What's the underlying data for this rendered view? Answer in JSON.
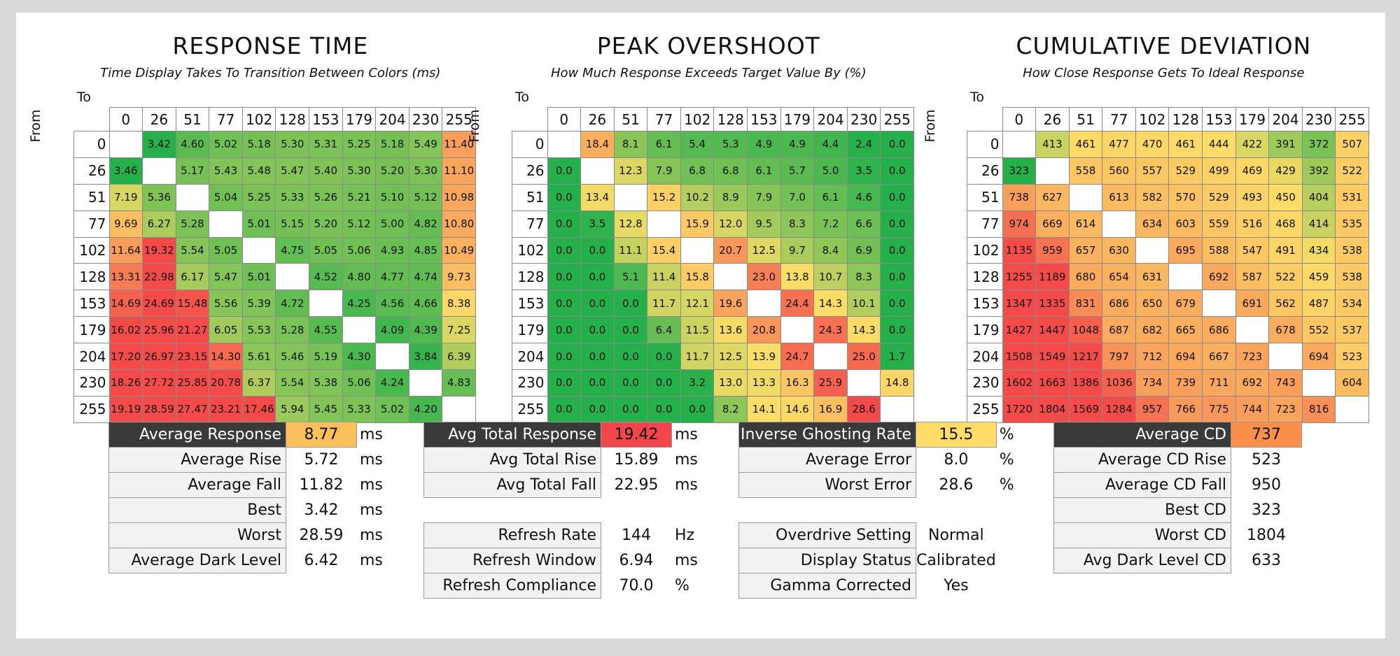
{
  "levels": [
    "0",
    "26",
    "51",
    "77",
    "102",
    "128",
    "153",
    "179",
    "204",
    "230",
    "255"
  ],
  "to_label": "To",
  "from_label": "From",
  "chart_data": [
    {
      "type": "heatmap",
      "title": "RESPONSE TIME",
      "subtitle": "Time Display Takes To Transition Between Colors (ms)",
      "decimals": 2,
      "scale": {
        "kind": "fixed",
        "green": 3.5,
        "yellow": 8,
        "red": 16
      },
      "rows": [
        [
          null,
          3.42,
          4.6,
          5.02,
          5.18,
          5.3,
          5.31,
          5.25,
          5.18,
          5.49,
          11.4
        ],
        [
          3.46,
          null,
          5.17,
          5.43,
          5.48,
          5.47,
          5.4,
          5.3,
          5.2,
          5.3,
          11.1
        ],
        [
          7.19,
          5.36,
          null,
          5.04,
          5.25,
          5.33,
          5.26,
          5.21,
          5.1,
          5.12,
          10.98
        ],
        [
          9.69,
          6.27,
          5.28,
          null,
          5.01,
          5.15,
          5.2,
          5.12,
          5.0,
          4.82,
          10.8
        ],
        [
          11.64,
          19.32,
          5.54,
          5.05,
          null,
          4.75,
          5.05,
          5.06,
          4.93,
          4.85,
          10.49
        ],
        [
          13.31,
          22.98,
          6.17,
          5.47,
          5.01,
          null,
          4.52,
          4.8,
          4.77,
          4.74,
          9.73
        ],
        [
          14.69,
          24.69,
          15.48,
          5.56,
          5.39,
          4.72,
          null,
          4.25,
          4.56,
          4.66,
          8.38
        ],
        [
          16.02,
          25.96,
          21.27,
          6.05,
          5.53,
          5.28,
          4.55,
          null,
          4.09,
          4.39,
          7.25
        ],
        [
          17.2,
          26.97,
          23.15,
          14.3,
          5.61,
          5.46,
          5.19,
          4.3,
          null,
          3.84,
          6.39
        ],
        [
          18.26,
          27.72,
          25.85,
          20.78,
          6.37,
          5.54,
          5.38,
          5.06,
          4.24,
          null,
          4.83
        ],
        [
          19.19,
          28.59,
          27.47,
          23.21,
          17.46,
          5.94,
          5.45,
          5.33,
          5.02,
          4.2,
          null
        ]
      ]
    },
    {
      "type": "heatmap",
      "title": "PEAK OVERSHOOT",
      "subtitle": "How Much Response Exceeds Target Value By (%)",
      "decimals": 1,
      "scale": {
        "kind": "fixed",
        "green": 3,
        "yellow": 14,
        "red": 28
      },
      "rows": [
        [
          null,
          18.4,
          8.1,
          6.1,
          5.4,
          5.3,
          4.9,
          4.9,
          4.4,
          2.4,
          0.0
        ],
        [
          0.0,
          null,
          12.3,
          7.9,
          6.8,
          6.8,
          6.1,
          5.7,
          5.0,
          3.5,
          0.0
        ],
        [
          0.0,
          13.4,
          null,
          15.2,
          10.2,
          8.9,
          7.9,
          7.0,
          6.1,
          4.6,
          0.0
        ],
        [
          0.0,
          3.5,
          12.8,
          null,
          15.9,
          12.0,
          9.5,
          8.3,
          7.2,
          6.6,
          0.0
        ],
        [
          0.0,
          0.0,
          11.1,
          15.4,
          null,
          20.7,
          12.5,
          9.7,
          8.4,
          6.9,
          0.0
        ],
        [
          0.0,
          0.0,
          5.1,
          11.4,
          15.8,
          null,
          23.0,
          13.8,
          10.7,
          8.3,
          0.0
        ],
        [
          0.0,
          0.0,
          0.0,
          11.7,
          12.1,
          19.6,
          null,
          24.4,
          14.3,
          10.1,
          0.0
        ],
        [
          0.0,
          0.0,
          0.0,
          6.4,
          11.5,
          13.6,
          20.8,
          null,
          24.3,
          14.3,
          0.0
        ],
        [
          0.0,
          0.0,
          0.0,
          0.0,
          11.7,
          12.5,
          13.9,
          24.7,
          null,
          25.0,
          1.7
        ],
        [
          0.0,
          0.0,
          0.0,
          0.0,
          3.2,
          13.0,
          13.3,
          16.3,
          25.9,
          null,
          14.8
        ],
        [
          0.0,
          0.0,
          0.0,
          0.0,
          0.0,
          8.2,
          14.1,
          14.6,
          16.9,
          28.6,
          null
        ]
      ]
    },
    {
      "type": "heatmap",
      "title": "CUMULATIVE DEVIATION",
      "subtitle": "How Close Response Gets To Ideal Response",
      "decimals": 0,
      "scale": {
        "kind": "fixed",
        "green": 330,
        "yellow": 440,
        "red": 1150
      },
      "rows": [
        [
          null,
          413,
          461,
          477,
          470,
          461,
          444,
          422,
          391,
          372,
          507
        ],
        [
          323,
          null,
          558,
          560,
          557,
          529,
          499,
          469,
          429,
          392,
          522
        ],
        [
          738,
          627,
          null,
          613,
          582,
          570,
          529,
          493,
          450,
          404,
          531
        ],
        [
          974,
          669,
          614,
          null,
          634,
          603,
          559,
          516,
          468,
          414,
          535
        ],
        [
          1135,
          959,
          657,
          630,
          null,
          695,
          588,
          547,
          491,
          434,
          538
        ],
        [
          1255,
          1189,
          680,
          654,
          631,
          null,
          692,
          587,
          522,
          459,
          538
        ],
        [
          1347,
          1335,
          831,
          686,
          650,
          679,
          null,
          691,
          562,
          487,
          534
        ],
        [
          1427,
          1447,
          1048,
          687,
          682,
          665,
          686,
          null,
          678,
          552,
          537
        ],
        [
          1508,
          1549,
          1217,
          797,
          712,
          694,
          667,
          723,
          null,
          694,
          523
        ],
        [
          1602,
          1663,
          1386,
          1036,
          734,
          739,
          711,
          692,
          743,
          null,
          604
        ],
        [
          1720,
          1804,
          1569,
          1284,
          957,
          766,
          775,
          744,
          723,
          816,
          null
        ]
      ]
    }
  ],
  "stats": [
    {
      "rows": [
        {
          "label": "Average Response",
          "value": "8.77",
          "unit": "ms",
          "dark": true,
          "color": "#fbbf5c"
        },
        {
          "label": "Average Rise",
          "value": "5.72",
          "unit": "ms"
        },
        {
          "label": "Average Fall",
          "value": "11.82",
          "unit": "ms"
        },
        {
          "label": "Best",
          "value": "3.42",
          "unit": "ms"
        },
        {
          "label": "Worst",
          "value": "28.59",
          "unit": "ms"
        },
        {
          "label": "Average Dark Level",
          "value": "6.42",
          "unit": "ms"
        }
      ]
    },
    {
      "rows": [
        {
          "label": "Avg Total Response",
          "value": "19.42",
          "unit": "ms",
          "dark": true,
          "color": "#f2474a"
        },
        {
          "label": "Avg Total Rise",
          "value": "15.89",
          "unit": "ms"
        },
        {
          "label": "Avg Total Fall",
          "value": "22.95",
          "unit": "ms"
        },
        {
          "gap": true
        },
        {
          "label": "Refresh Rate",
          "value": "144",
          "unit": "Hz"
        },
        {
          "label": "Refresh Window",
          "value": "6.94",
          "unit": "ms"
        },
        {
          "label": "Refresh Compliance",
          "value": "70.0",
          "unit": "%"
        }
      ]
    },
    {
      "rows": [
        {
          "label": "Inverse Ghosting Rate",
          "value": "15.5",
          "unit": "%",
          "dark": true,
          "color": "#fddc68"
        },
        {
          "label": "Average Error",
          "value": "8.0",
          "unit": "%"
        },
        {
          "label": "Worst Error",
          "value": "28.6",
          "unit": "%"
        },
        {
          "gap": true
        },
        {
          "label": "Overdrive Setting",
          "value": "Normal",
          "unit": ""
        },
        {
          "label": "Display Status",
          "value": "Calibrated",
          "unit": ""
        },
        {
          "label": "Gamma Corrected",
          "value": "Yes",
          "unit": ""
        }
      ]
    },
    {
      "rows": [
        {
          "label": "Average CD",
          "value": "737",
          "unit": "",
          "dark": true,
          "color": "#f98f48"
        },
        {
          "label": "Average CD Rise",
          "value": "523",
          "unit": ""
        },
        {
          "label": "Average CD Fall",
          "value": "950",
          "unit": ""
        },
        {
          "label": "Best CD",
          "value": "323",
          "unit": ""
        },
        {
          "label": "Worst CD",
          "value": "1804",
          "unit": ""
        },
        {
          "label": "Avg Dark Level CD",
          "value": "633",
          "unit": ""
        }
      ]
    }
  ]
}
